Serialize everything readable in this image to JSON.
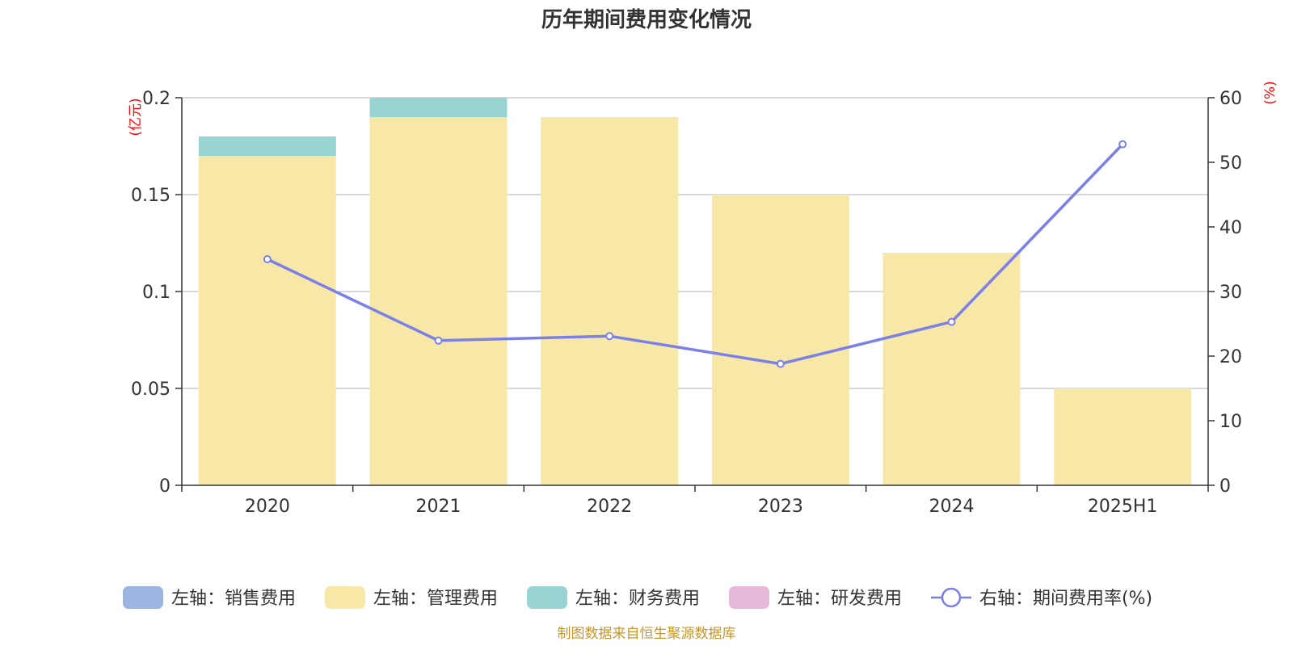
{
  "chart_data": {
    "type": "bar",
    "title": "历年期间费用变化情况",
    "categories": [
      "2020",
      "2021",
      "2022",
      "2023",
      "2024",
      "2025H1"
    ],
    "left_axis": {
      "unit": "(亿元)",
      "ylim": [
        0,
        0.2
      ],
      "ticks": [
        0,
        0.05,
        0.1,
        0.15,
        0.2
      ],
      "tick_labels": [
        "0",
        "0.05",
        "0.1",
        "0.15",
        "0.2"
      ]
    },
    "right_axis": {
      "unit": "(%)",
      "ylim": [
        0,
        60
      ],
      "ticks": [
        0,
        10,
        20,
        30,
        40,
        50,
        60
      ],
      "tick_labels": [
        "0",
        "10",
        "20",
        "30",
        "40",
        "50",
        "60"
      ]
    },
    "series": [
      {
        "name": "左轴：销售费用",
        "type": "bar",
        "axis": "left",
        "color": "#9bb5e0",
        "values": [
          0,
          0,
          0,
          0,
          0,
          0
        ]
      },
      {
        "name": "左轴：管理费用",
        "type": "bar",
        "axis": "left",
        "color": "#f8e8a8",
        "values": [
          0.17,
          0.19,
          0.19,
          0.15,
          0.12,
          0.05
        ]
      },
      {
        "name": "左轴：财务费用",
        "type": "bar",
        "axis": "left",
        "color": "#98d4d4",
        "values": [
          0.01,
          0.01,
          0,
          0,
          0,
          0
        ]
      },
      {
        "name": "左轴：研发费用",
        "type": "bar",
        "axis": "left",
        "color": "#e8b8d8",
        "values": [
          0,
          0,
          0,
          0,
          0,
          0
        ]
      },
      {
        "name": "右轴：期间费用率(%)",
        "type": "line",
        "axis": "right",
        "color": "#7b7fe8",
        "values": [
          35.0,
          22.4,
          23.1,
          18.8,
          25.3,
          52.8
        ]
      }
    ],
    "grid": true,
    "legend_position": "bottom",
    "source": "制图数据来自恒生聚源数据库"
  }
}
